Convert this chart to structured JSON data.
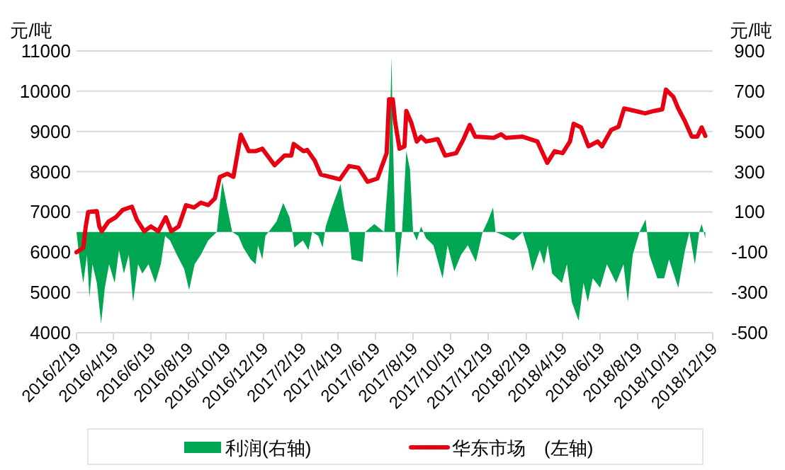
{
  "chart_data": {
    "type": "line",
    "ylabel": "元/吨",
    "y2label": "元/吨",
    "ylim": [
      4000,
      11000
    ],
    "yticks": [
      4000,
      5000,
      6000,
      7000,
      8000,
      9000,
      10000,
      11000
    ],
    "y2lim": [
      -500,
      900
    ],
    "y2ticks": [
      -500,
      -300,
      -100,
      100,
      300,
      500,
      700,
      900
    ],
    "xlim": [
      "2016-02-19",
      "2018-12-19"
    ],
    "xticks": [
      {
        "value": "2016-02-19",
        "label": "2016/2/19"
      },
      {
        "value": "2016-04-19",
        "label": "2016/4/19"
      },
      {
        "value": "2016-06-19",
        "label": "2016/6/19"
      },
      {
        "value": "2016-08-19",
        "label": "2016/8/19"
      },
      {
        "value": "2016-10-19",
        "label": "2016/10/19"
      },
      {
        "value": "2016-12-19",
        "label": "2016/12/19"
      },
      {
        "value": "2017-02-19",
        "label": "2017/2/19"
      },
      {
        "value": "2017-04-19",
        "label": "2017/4/19"
      },
      {
        "value": "2017-06-19",
        "label": "2017/6/19"
      },
      {
        "value": "2017-08-19",
        "label": "2017/8/19"
      },
      {
        "value": "2017-10-19",
        "label": "2017/10/19"
      },
      {
        "value": "2017-12-19",
        "label": "2017/12/19"
      },
      {
        "value": "2018-02-19",
        "label": "2018/2/19"
      },
      {
        "value": "2018-04-19",
        "label": "2018/4/19"
      },
      {
        "value": "2018-06-19",
        "label": "2018/6/19"
      },
      {
        "value": "2018-08-19",
        "label": "2018/8/19"
      },
      {
        "value": "2018-10-19",
        "label": "2018/10/19"
      },
      {
        "value": "2018-12-19",
        "label": "2018/12/19"
      }
    ],
    "grid": "y",
    "legend": "bottom",
    "marker": "none",
    "line_style": "solid",
    "series": [
      {
        "name": "利润(右轴)",
        "type": "area",
        "axis": "y2",
        "color": "#00a651",
        "x": [
          "2016-02-19",
          "2016-02-23",
          "2016-03-01",
          "2016-03-07",
          "2016-03-11",
          "2016-03-16",
          "2016-03-23",
          "2016-03-30",
          "2016-04-05",
          "2016-04-12",
          "2016-04-21",
          "2016-04-28",
          "2016-05-06",
          "2016-05-14",
          "2016-05-21",
          "2016-05-29",
          "2016-06-05",
          "2016-06-15",
          "2016-06-26",
          "2016-07-05",
          "2016-07-12",
          "2016-07-20",
          "2016-07-31",
          "2016-08-12",
          "2016-08-20",
          "2016-08-29",
          "2016-09-08",
          "2016-09-20",
          "2016-10-04",
          "2016-10-13",
          "2016-10-21",
          "2016-10-29",
          "2016-11-08",
          "2016-11-16",
          "2016-11-28",
          "2016-12-06",
          "2016-12-10",
          "2016-12-17",
          "2016-12-22",
          "2016-12-27",
          "2017-01-09",
          "2017-01-20",
          "2017-01-30",
          "2017-02-04",
          "2017-02-07",
          "2017-02-21",
          "2017-03-02",
          "2017-03-08",
          "2017-03-18",
          "2017-03-25",
          "2017-03-30",
          "2017-04-09",
          "2017-04-23",
          "2017-04-29",
          "2017-05-07",
          "2017-05-11",
          "2017-05-29",
          "2017-06-02",
          "2017-06-17",
          "2017-07-03",
          "2017-07-11",
          "2017-07-15",
          "2017-07-17",
          "2017-07-21",
          "2017-07-24",
          "2017-08-01",
          "2017-08-08",
          "2017-08-14",
          "2017-08-19",
          "2017-08-25",
          "2017-09-01",
          "2017-09-09",
          "2017-09-21",
          "2017-10-06",
          "2017-10-14",
          "2017-10-25",
          "2017-11-05",
          "2017-11-16",
          "2017-11-29",
          "2017-12-10",
          "2017-12-18",
          "2017-12-27",
          "2017-12-31",
          "2018-01-15",
          "2018-01-29",
          "2018-02-13",
          "2018-02-22",
          "2018-03-01",
          "2018-03-13",
          "2018-03-20",
          "2018-03-26",
          "2018-04-02",
          "2018-04-18",
          "2018-04-26",
          "2018-05-04",
          "2018-05-15",
          "2018-05-23",
          "2018-05-30",
          "2018-06-07",
          "2018-06-19",
          "2018-06-30",
          "2018-07-15",
          "2018-07-27",
          "2018-08-03",
          "2018-08-11",
          "2018-08-22",
          "2018-09-01",
          "2018-09-07",
          "2018-09-20",
          "2018-10-01",
          "2018-10-09",
          "2018-10-24",
          "2018-11-04",
          "2018-11-11",
          "2018-11-20",
          "2018-11-27",
          "2018-12-01",
          "2018-12-07"
        ],
        "values": [
          0,
          -113,
          -253,
          -113,
          -324,
          -160,
          -253,
          -453,
          -277,
          -160,
          -253,
          -89,
          -206,
          -113,
          -347,
          -160,
          -206,
          -160,
          -253,
          -160,
          -19,
          -42,
          -113,
          -183,
          -288,
          -160,
          -113,
          -42,
          0,
          251,
          122,
          0,
          -19,
          -77,
          -136,
          -160,
          -66,
          -136,
          -19,
          0,
          52,
          145,
          75,
          0,
          -77,
          -42,
          -89,
          0,
          -19,
          -77,
          28,
          122,
          239,
          122,
          0,
          -136,
          -148,
          0,
          40,
          0,
          333,
          872,
          496,
          0,
          -230,
          0,
          403,
          310,
          0,
          -42,
          28,
          -30,
          -66,
          -230,
          -66,
          -195,
          -113,
          -66,
          -148,
          0,
          52,
          122,
          0,
          -19,
          -42,
          0,
          -89,
          -195,
          -89,
          -160,
          -66,
          -206,
          -253,
          -160,
          -347,
          -441,
          -253,
          -347,
          -230,
          -277,
          -160,
          -253,
          -160,
          -347,
          -113,
          0,
          63,
          -113,
          -230,
          -230,
          -136,
          -277,
          -89,
          0,
          -160,
          0,
          40,
          -30
        ]
      },
      {
        "name": "华东市场　(左轴)",
        "color": "#e60012",
        "x": [
          "2016-02-19",
          "2016-03-01",
          "2016-03-05",
          "2016-03-09",
          "2016-03-23",
          "2016-03-27",
          "2016-03-31",
          "2016-04-11",
          "2016-04-23",
          "2016-05-04",
          "2016-05-19",
          "2016-05-27",
          "2016-06-08",
          "2016-06-19",
          "2016-07-01",
          "2016-07-13",
          "2016-07-22",
          "2016-08-03",
          "2016-08-15",
          "2016-08-28",
          "2016-09-08",
          "2016-09-20",
          "2016-10-01",
          "2016-10-09",
          "2016-10-21",
          "2016-10-31",
          "2016-11-12",
          "2016-11-25",
          "2016-12-06",
          "2016-12-17",
          "2017-01-06",
          "2017-01-22",
          "2017-02-02",
          "2017-02-06",
          "2017-02-22",
          "2017-02-28",
          "2017-03-12",
          "2017-03-22",
          "2017-04-06",
          "2017-04-22",
          "2017-05-07",
          "2017-05-22",
          "2017-06-06",
          "2017-06-22",
          "2017-07-07",
          "2017-07-11",
          "2017-07-17",
          "2017-07-21",
          "2017-07-28",
          "2017-08-05",
          "2017-08-08",
          "2017-08-16",
          "2017-08-25",
          "2017-09-01",
          "2017-09-09",
          "2017-09-28",
          "2017-10-10",
          "2017-10-28",
          "2017-11-09",
          "2017-11-19",
          "2017-11-28",
          "2017-12-28",
          "2018-01-09",
          "2018-01-17",
          "2018-02-13",
          "2018-03-09",
          "2018-03-25",
          "2018-04-06",
          "2018-04-19",
          "2018-05-01",
          "2018-05-07",
          "2018-05-19",
          "2018-05-31",
          "2018-06-15",
          "2018-06-22",
          "2018-07-07",
          "2018-07-19",
          "2018-07-28",
          "2018-08-15",
          "2018-08-31",
          "2018-09-15",
          "2018-09-28",
          "2018-10-04",
          "2018-10-16",
          "2018-10-24",
          "2018-11-03",
          "2018-11-15",
          "2018-11-24",
          "2018-12-01",
          "2018-12-07"
        ],
        "values": [
          6000,
          6110,
          6640,
          7000,
          7020,
          6640,
          6520,
          6760,
          6870,
          7050,
          7130,
          6810,
          6520,
          6640,
          6520,
          6870,
          6520,
          6640,
          7170,
          7110,
          7230,
          7170,
          7340,
          7870,
          7950,
          7870,
          8920,
          8510,
          8510,
          8570,
          8160,
          8400,
          8400,
          8690,
          8510,
          8540,
          8280,
          7930,
          7870,
          7810,
          8140,
          8100,
          7750,
          7830,
          8460,
          9800,
          9800,
          9220,
          8570,
          8630,
          9510,
          9220,
          8750,
          8870,
          8750,
          8810,
          8400,
          8460,
          8810,
          9160,
          8870,
          8840,
          8930,
          8840,
          8870,
          8750,
          8220,
          8510,
          8460,
          8750,
          9190,
          9100,
          8630,
          8750,
          8630,
          9040,
          9120,
          9570,
          9510,
          9450,
          9510,
          9550,
          10040,
          9860,
          9570,
          9280,
          8870,
          8870,
          9100,
          8890
        ]
      }
    ]
  }
}
